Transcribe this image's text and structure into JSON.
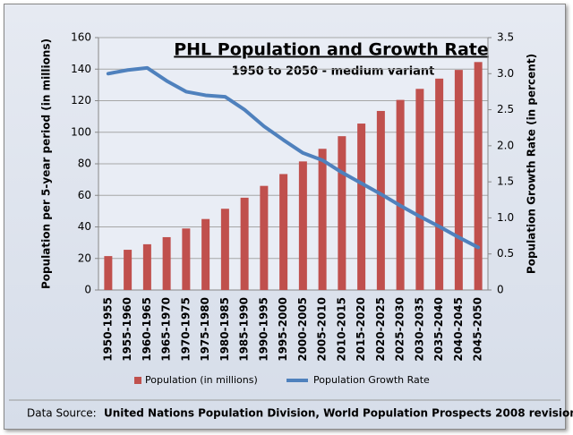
{
  "chart_data": {
    "type": "bar",
    "title": "PHL Population and Growth Rate",
    "subtitle": "1950 to 2050 - medium variant",
    "y_label": "Population per 5-year period (in millions)",
    "y2_label": "Population Growth Rate (in percent)",
    "source_label": "Data Source:",
    "source_text": "United Nations Population Division, World Population Prospects 2008 revision",
    "categories": [
      "1950-1955",
      "1955-1960",
      "1960-1965",
      "1965-1970",
      "1970-1975",
      "1975-1980",
      "1980-1985",
      "1985-1990",
      "1990-1995",
      "1995-2000",
      "2000-2005",
      "2005-2010",
      "2010-2015",
      "2015-2020",
      "2020-2025",
      "2025-2030",
      "2030-2035",
      "2035-2040",
      "2040-2045",
      "2045-2050"
    ],
    "series": [
      {
        "name": "Population (in millions)",
        "type": "bar",
        "color": "#c0504d",
        "values": [
          21.5,
          25.5,
          29,
          33.5,
          39,
          45,
          51.5,
          58.5,
          66,
          73.5,
          81.5,
          89.5,
          97.5,
          105.5,
          113.5,
          120.5,
          127.5,
          134,
          139.5,
          144.5
        ]
      },
      {
        "name": "Population Growth Rate",
        "type": "line",
        "axis": "y2",
        "color": "#4f81bd",
        "values": [
          3.0,
          3.05,
          3.08,
          2.9,
          2.75,
          2.7,
          2.68,
          2.5,
          2.27,
          2.08,
          1.9,
          1.8,
          1.63,
          1.48,
          1.33,
          1.17,
          1.02,
          0.88,
          0.73,
          0.59
        ]
      }
    ],
    "ylim": [
      0,
      160
    ],
    "yticks": [
      0,
      20,
      40,
      60,
      80,
      100,
      120,
      140,
      160
    ],
    "y2lim": [
      0,
      3.5
    ],
    "y2ticks": [
      0,
      0.5,
      {
        "value": 1,
        "label": "1.0"
      },
      1.5,
      {
        "value": 2,
        "label": "2.0"
      },
      2.5,
      {
        "value": 3,
        "label": "3.0"
      },
      3.5
    ],
    "grid": true
  }
}
